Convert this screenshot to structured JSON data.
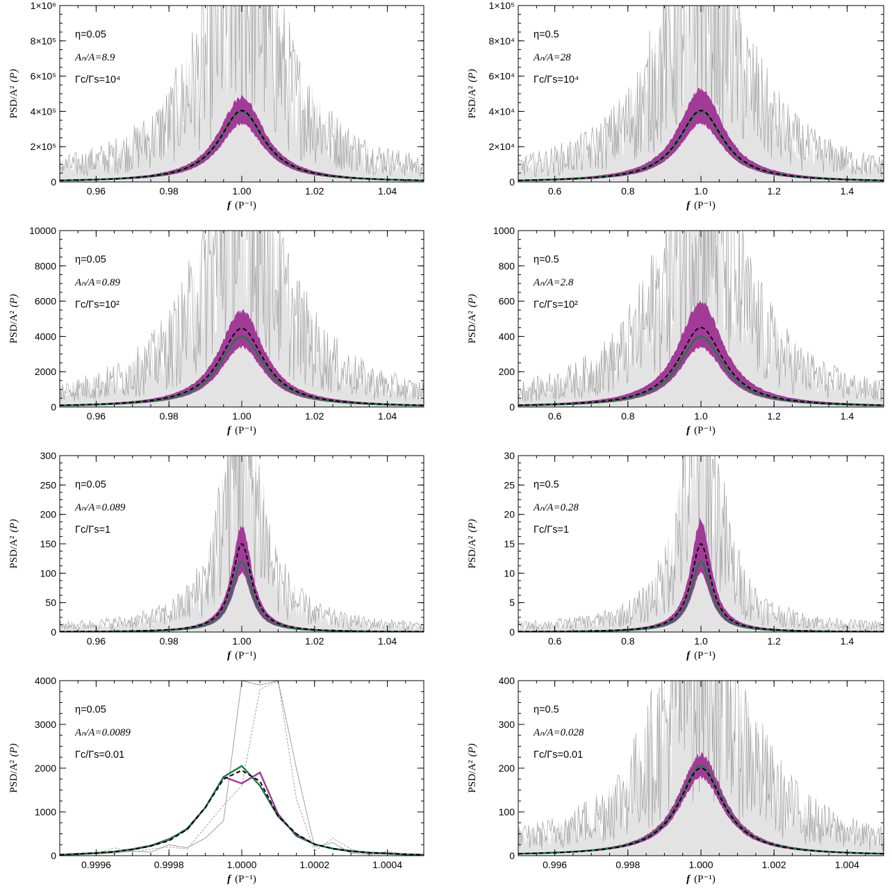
{
  "colors": {
    "observed_band": "#e3e3e3",
    "observed_line": "#9e9e9e",
    "spread_band": "#a23b98",
    "model_line": "#1d7a46",
    "mean_line": "#000000"
  },
  "chart_data": [
    {
      "type": "line",
      "panel": "eta0.05-ratio1e4",
      "xlim": [
        0.95,
        1.05
      ],
      "ylim": [
        0,
        1000000
      ],
      "xticks": [
        0.96,
        0.98,
        1.0,
        1.02,
        1.04
      ],
      "xtick_labels": [
        "0.96",
        "0.98",
        "1.00",
        "1.02",
        "1.04"
      ],
      "yticks": [
        0,
        200000,
        400000,
        600000,
        800000,
        1000000
      ],
      "ytick_labels": [
        "0",
        "2×10⁵",
        "4×10⁵",
        "6×10⁵",
        "8×10⁵",
        "1×10⁶"
      ],
      "xlabel_main": "f",
      "xlabel_unit": "(P⁻¹)",
      "ylabel_main": "PSD/A²",
      "ylabel_unit": "(P)",
      "annotations": {
        "eta": "η=0.05",
        "an": "Aₙ/A=8.9",
        "gamma": "Γc/Γs=10⁴"
      },
      "peak_model": 400000,
      "peak_mean": 405000,
      "band_high": 480000,
      "band_low": 340000,
      "half_width": 0.0075,
      "obs_max": 1000000,
      "obs_half_width": 0.013
    },
    {
      "type": "line",
      "panel": "eta0.5-ratio1e4",
      "xlim": [
        0.5,
        1.5
      ],
      "ylim": [
        0,
        100000
      ],
      "xticks": [
        0.6,
        0.8,
        1.0,
        1.2,
        1.4
      ],
      "xtick_labels": [
        "0.6",
        "0.8",
        "1.0",
        "1.2",
        "1.4"
      ],
      "yticks": [
        0,
        20000,
        40000,
        60000,
        80000,
        100000
      ],
      "ytick_labels": [
        "0",
        "2×10⁴",
        "4×10⁴",
        "6×10⁴",
        "8×10⁴",
        "1×10⁵"
      ],
      "xlabel_main": "f",
      "xlabel_unit": "(P⁻¹)",
      "ylabel_main": "PSD/A²",
      "ylabel_unit": "(P)",
      "annotations": {
        "eta": "η=0.5",
        "an": "Aₙ/A=28",
        "gamma": "Γc/Γs=10⁴"
      },
      "peak_model": 40000,
      "peak_mean": 40500,
      "band_high": 52000,
      "band_low": 34000,
      "half_width": 0.075,
      "obs_max": 100000,
      "obs_half_width": 0.13
    },
    {
      "type": "line",
      "panel": "eta0.05-ratio1e2",
      "xlim": [
        0.95,
        1.05
      ],
      "ylim": [
        0,
        10000
      ],
      "xticks": [
        0.96,
        0.98,
        1.0,
        1.02,
        1.04
      ],
      "xtick_labels": [
        "0.96",
        "0.98",
        "1.00",
        "1.02",
        "1.04"
      ],
      "yticks": [
        0,
        2000,
        4000,
        6000,
        8000,
        10000
      ],
      "ytick_labels": [
        "0",
        "2000",
        "4000",
        "6000",
        "8000",
        "10000"
      ],
      "xlabel_main": "f",
      "xlabel_unit": "(P⁻¹)",
      "ylabel_main": "PSD/A²",
      "ylabel_unit": "(P)",
      "annotations": {
        "eta": "η=0.05",
        "an": "Aₙ/A=0.89",
        "gamma": "Γc/Γs=10²"
      },
      "peak_model": 4000,
      "peak_mean": 4450,
      "band_high": 5400,
      "band_low": 3500,
      "half_width": 0.0075,
      "obs_max": 10000,
      "obs_half_width": 0.013
    },
    {
      "type": "line",
      "panel": "eta0.5-ratio1e2",
      "xlim": [
        0.5,
        1.5
      ],
      "ylim": [
        0,
        1000
      ],
      "xticks": [
        0.6,
        0.8,
        1.0,
        1.2,
        1.4
      ],
      "xtick_labels": [
        "0.6",
        "0.8",
        "1.0",
        "1.2",
        "1.4"
      ],
      "yticks": [
        0,
        200,
        400,
        600,
        800,
        1000
      ],
      "ytick_labels": [
        "0",
        "200",
        "400",
        "600",
        "800",
        "1000"
      ],
      "xlabel_main": "f",
      "xlabel_unit": "(P⁻¹)",
      "ylabel_main": "PSD/A²",
      "ylabel_unit": "(P)",
      "annotations": {
        "eta": "η=0.5",
        "an": "Aₙ/A=2.8",
        "gamma": "Γc/Γs=10²"
      },
      "peak_model": 400,
      "peak_mean": 450,
      "band_high": 590,
      "band_low": 350,
      "half_width": 0.075,
      "obs_max": 1000,
      "obs_half_width": 0.13
    },
    {
      "type": "line",
      "panel": "eta0.05-ratio1",
      "xlim": [
        0.95,
        1.05
      ],
      "ylim": [
        0,
        300
      ],
      "xticks": [
        0.96,
        0.98,
        1.0,
        1.02,
        1.04
      ],
      "xtick_labels": [
        "0.96",
        "0.98",
        "1.00",
        "1.02",
        "1.04"
      ],
      "yticks": [
        0,
        50,
        100,
        150,
        200,
        250,
        300
      ],
      "ytick_labels": [
        "0",
        "50",
        "100",
        "150",
        "200",
        "250",
        "300"
      ],
      "xlabel_main": "f",
      "xlabel_unit": "(P⁻¹)",
      "ylabel_main": "PSD/A²",
      "ylabel_unit": "(P)",
      "annotations": {
        "eta": "η=0.05",
        "an": "Aₙ/A=0.089",
        "gamma": "Γc/Γs=1"
      },
      "peak_model": 120,
      "peak_mean": 150,
      "band_high": 178,
      "band_low": 105,
      "half_width": 0.0033,
      "obs_max": 300,
      "obs_half_width": 0.006
    },
    {
      "type": "line",
      "panel": "eta0.5-ratio1",
      "xlim": [
        0.5,
        1.5
      ],
      "ylim": [
        0,
        30
      ],
      "xticks": [
        0.6,
        0.8,
        1.0,
        1.2,
        1.4
      ],
      "xtick_labels": [
        "0.6",
        "0.8",
        "1.0",
        "1.2",
        "1.4"
      ],
      "yticks": [
        0,
        5,
        10,
        15,
        20,
        25,
        30
      ],
      "ytick_labels": [
        "0",
        "5",
        "10",
        "15",
        "20",
        "25",
        "30"
      ],
      "xlabel_main": "f",
      "xlabel_unit": "(P⁻¹)",
      "ylabel_main": "PSD/A²",
      "ylabel_unit": "(P)",
      "annotations": {
        "eta": "η=0.5",
        "an": "Aₙ/A=0.28",
        "gamma": "Γc/Γs=1"
      },
      "peak_model": 12,
      "peak_mean": 15,
      "band_high": 19,
      "band_low": 10.5,
      "half_width": 0.033,
      "obs_max": 30,
      "obs_half_width": 0.06
    },
    {
      "type": "line",
      "panel": "eta0.05-ratio0.01",
      "xlim": [
        0.9995,
        1.0005
      ],
      "ylim": [
        0,
        4000
      ],
      "xticks": [
        0.9996,
        0.9998,
        1.0,
        1.0002,
        1.0004
      ],
      "xtick_labels": [
        "0.9996",
        "0.9998",
        "1.0000",
        "1.0002",
        "1.0004"
      ],
      "yticks": [
        0,
        1000,
        2000,
        3000,
        4000
      ],
      "ytick_labels": [
        "0",
        "1000",
        "2000",
        "3000",
        "4000"
      ],
      "xlabel_main": "f",
      "xlabel_unit": "(P⁻¹)",
      "ylabel_main": "PSD/A²",
      "ylabel_unit": "(P)",
      "annotations": {
        "eta": "η=0.05",
        "an": "Aₙ/A=0.0089",
        "gamma": "Γc/Γs=0.01"
      },
      "model_x": [
        0.9995,
        0.99955,
        0.9996,
        0.99965,
        0.9997,
        0.99975,
        0.9998,
        0.99985,
        0.9999,
        0.99995,
        1.0,
        1.00005,
        1.0001,
        1.00015,
        1.0002,
        1.00025,
        1.0003,
        1.00035,
        1.0004,
        1.00045,
        1.0005
      ],
      "model_y": [
        20,
        40,
        60,
        90,
        140,
        220,
        360,
        620,
        1100,
        1800,
        2050,
        1600,
        900,
        480,
        260,
        160,
        100,
        70,
        50,
        30,
        20
      ],
      "mean_y": [
        20,
        40,
        60,
        90,
        140,
        220,
        340,
        600,
        1100,
        1750,
        1950,
        1700,
        900,
        500,
        260,
        160,
        100,
        70,
        50,
        30,
        20
      ],
      "spread_y": [
        20,
        40,
        60,
        90,
        150,
        230,
        380,
        600,
        1100,
        1800,
        1650,
        1900,
        950,
        450,
        260,
        160,
        110,
        70,
        50,
        30,
        20
      ],
      "obs_y": [
        10,
        30,
        60,
        180,
        80,
        150,
        200,
        150,
        650,
        1150,
        1600,
        3800,
        4000,
        1300,
        100,
        400,
        150,
        40,
        100,
        30,
        10
      ],
      "obs2_y": [
        10,
        20,
        40,
        60,
        100,
        80,
        250,
        180,
        400,
        800,
        4000,
        3900,
        4000,
        2000,
        200,
        300,
        60,
        30,
        40,
        10,
        5
      ]
    },
    {
      "type": "line",
      "panel": "eta0.5-ratio0.01",
      "xlim": [
        0.995,
        1.005
      ],
      "ylim": [
        0,
        400
      ],
      "xticks": [
        0.996,
        0.998,
        1.0,
        1.002,
        1.004
      ],
      "xtick_labels": [
        "0.996",
        "0.998",
        "1.000",
        "1.002",
        "1.004"
      ],
      "yticks": [
        0,
        100,
        200,
        300,
        400
      ],
      "ytick_labels": [
        "0",
        "100",
        "200",
        "300",
        "400"
      ],
      "xlabel_main": "f",
      "xlabel_unit": "(P⁻¹)",
      "ylabel_main": "PSD/A²",
      "ylabel_unit": "(P)",
      "annotations": {
        "eta": "η=0.5",
        "an": "Aₙ/A=0.028",
        "gamma": "Γc/Γs=0.01"
      },
      "peak_model": 205,
      "peak_mean": 200,
      "band_high": 230,
      "band_low": 185,
      "half_width": 0.00075,
      "obs_max": 400,
      "obs_half_width": 0.0014
    }
  ]
}
